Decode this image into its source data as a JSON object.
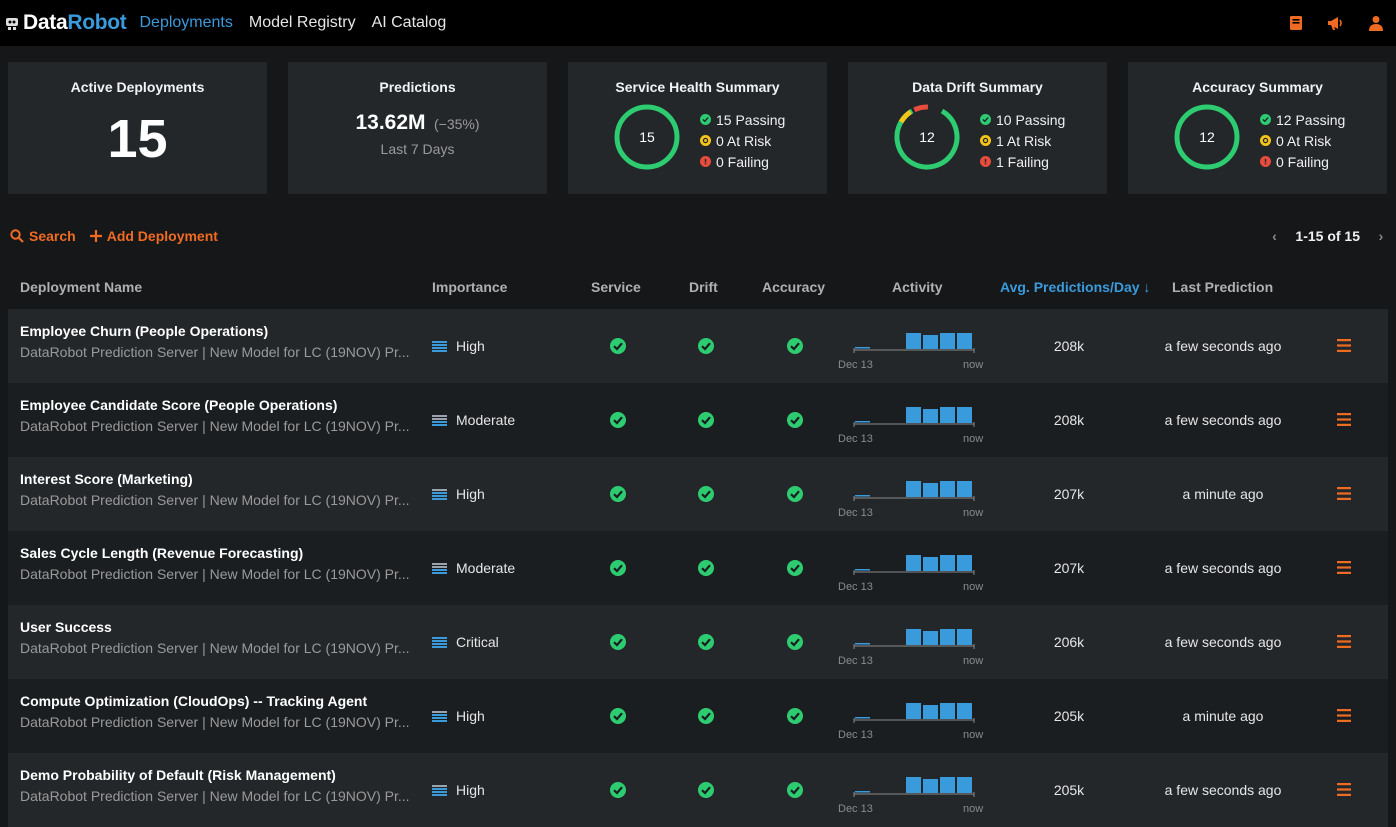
{
  "app": {
    "logo_data": "Data",
    "logo_robot": "Robot",
    "nav": [
      "Deployments",
      "Model Registry",
      "AI Catalog"
    ],
    "accent": "#3a9bdc",
    "action_color": "#f06b22",
    "top_icons": [
      "book-icon",
      "megaphone-icon",
      "user-icon"
    ]
  },
  "summary": {
    "active": {
      "title": "Active Deployments",
      "value": "15"
    },
    "predictions": {
      "title": "Predictions",
      "value": "13.62M",
      "change": "(−35%)",
      "sub": "Last 7 Days"
    },
    "service": {
      "title": "Service Health Summary",
      "ring": "15",
      "passing": "15 Passing",
      "at_risk": "0 At Risk",
      "failing": "0 Failing"
    },
    "drift": {
      "title": "Data Drift Summary",
      "ring": "12",
      "passing": "10 Passing",
      "at_risk": "1 At Risk",
      "failing": "1 Failing"
    },
    "accuracy": {
      "title": "Accuracy Summary",
      "ring": "12",
      "passing": "12 Passing",
      "at_risk": "0 At Risk",
      "failing": "0 Failing"
    },
    "colors": {
      "passing": "#2ecc71",
      "at_risk": "#f5c518",
      "failing": "#e74c3c"
    }
  },
  "toolbar": {
    "search": "Search",
    "add": "Add Deployment",
    "page_range": "1-15 of 15"
  },
  "table": {
    "headers": {
      "name": "Deployment Name",
      "importance": "Importance",
      "service": "Service",
      "drift": "Drift",
      "accuracy": "Accuracy",
      "activity": "Activity",
      "avg": "Avg. Predictions/Day",
      "last": "Last Prediction"
    },
    "sort_arrow": "↓",
    "activity_start": "Dec 13",
    "activity_end": "now",
    "rows": [
      {
        "name": "Employee Churn (People Operations)",
        "sub": "DataRobot Prediction Server | New Model for LC (19NOV) Pr...",
        "importance": "High",
        "avg": "208k",
        "last": "a few seconds ago"
      },
      {
        "name": "Employee Candidate Score (People Operations)",
        "sub": "DataRobot Prediction Server | New Model for LC (19NOV) Pr...",
        "importance": "Moderate",
        "avg": "208k",
        "last": "a few seconds ago"
      },
      {
        "name": "Interest Score (Marketing)",
        "sub": "DataRobot Prediction Server | New Model for LC (19NOV) Pr...",
        "importance": "High",
        "avg": "207k",
        "last": "a minute ago"
      },
      {
        "name": "Sales Cycle Length (Revenue Forecasting)",
        "sub": "DataRobot Prediction Server | New Model for LC (19NOV) Pr...",
        "importance": "Moderate",
        "avg": "207k",
        "last": "a few seconds ago"
      },
      {
        "name": "User Success",
        "sub": "DataRobot Prediction Server | New Model for LC (19NOV) Pr...",
        "importance": "Critical",
        "avg": "206k",
        "last": "a few seconds ago"
      },
      {
        "name": "Compute Optimization (CloudOps) -- Tracking Agent",
        "sub": "DataRobot Prediction Server | New Model for LC (19NOV) Pr...",
        "importance": "High",
        "avg": "205k",
        "last": "a minute ago"
      },
      {
        "name": "Demo Probability of Default (Risk Management)",
        "sub": "DataRobot Prediction Server | New Model for LC (19NOV) Pr...",
        "importance": "High",
        "avg": "205k",
        "last": "a few seconds ago"
      }
    ]
  }
}
